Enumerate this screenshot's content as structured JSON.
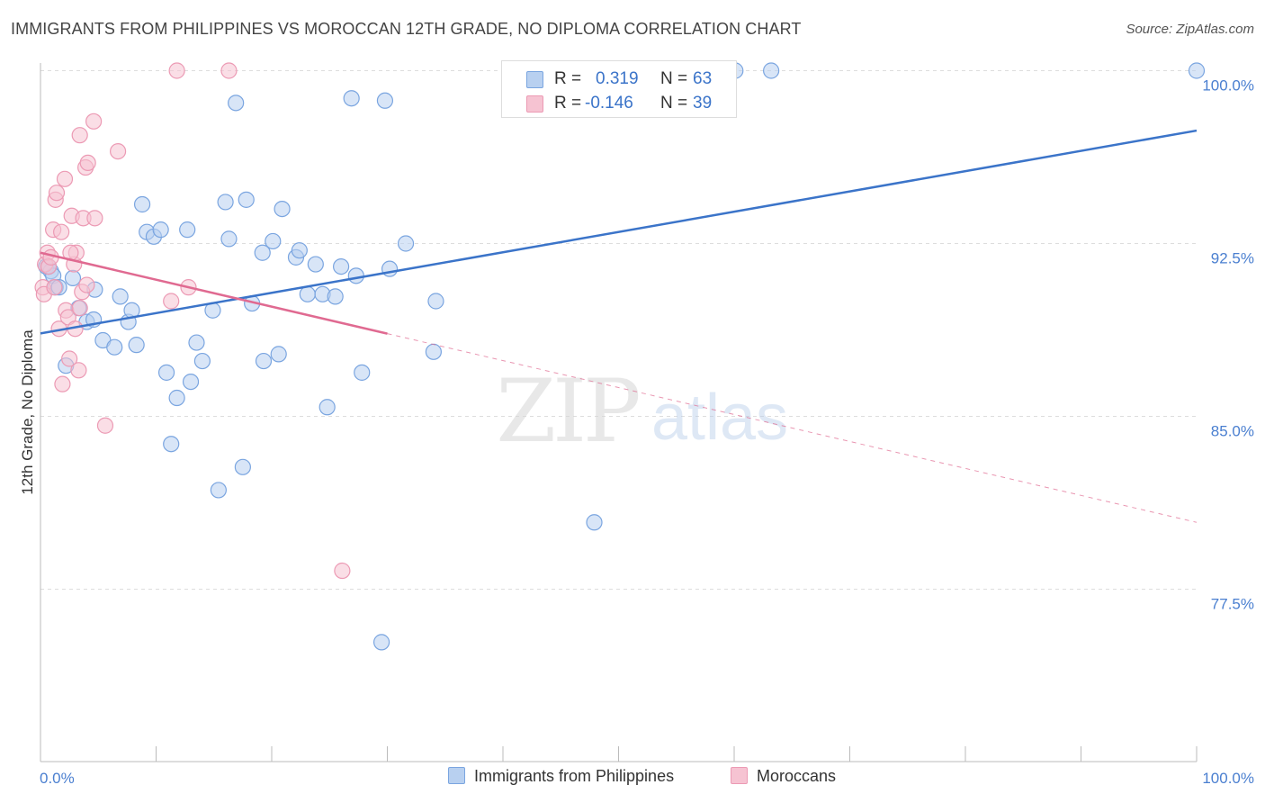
{
  "title": "IMMIGRANTS FROM PHILIPPINES VS MOROCCAN 12TH GRADE, NO DIPLOMA CORRELATION CHART",
  "source": "Source: ZipAtlas.com",
  "watermark": {
    "zip": "ZIP",
    "atlas": "atlas"
  },
  "colors": {
    "blue": "#3b74c9",
    "blue_fill": "#b8d0f0",
    "pink": "#e06a91",
    "pink_fill": "#f6c3d2",
    "grid": "#dddddd",
    "tick_text": "#4a7fd0"
  },
  "legend": {
    "rows": [
      {
        "r_label": "R =",
        "r_value": "0.319",
        "n_label": "N =",
        "n_value": "63"
      },
      {
        "r_label": "R =",
        "r_value": "-0.146",
        "n_label": "N =",
        "n_value": "39"
      }
    ]
  },
  "chart_data": {
    "type": "scatter",
    "title": "IMMIGRANTS FROM PHILIPPINES VS MOROCCAN 12TH GRADE, NO DIPLOMA CORRELATION CHART",
    "xlabel": "",
    "ylabel": "12th Grade, No Diploma",
    "xlim": [
      0,
      100
    ],
    "ylim": [
      70.0,
      100.5
    ],
    "x_tick_labels": [
      "0.0%",
      "100.0%"
    ],
    "y_ticks": [
      77.5,
      85.0,
      92.5,
      100.0
    ],
    "y_tick_labels": [
      "77.5%",
      "85.0%",
      "92.5%",
      "100.0%"
    ],
    "grid": true,
    "legend_position": "bottom",
    "series": [
      {
        "name": "Immigrants from Philippines",
        "r": 0.319,
        "n": 63,
        "trend": {
          "x": [
            0,
            100
          ],
          "y": [
            88.6,
            97.4
          ],
          "dashed_from": null
        },
        "points": [
          [
            0.5,
            91.5
          ],
          [
            0.9,
            91.3
          ],
          [
            1.1,
            91.1
          ],
          [
            1.3,
            90.6
          ],
          [
            1.6,
            90.6
          ],
          [
            2.2,
            87.2
          ],
          [
            2.8,
            91.0
          ],
          [
            3.3,
            89.7
          ],
          [
            4.0,
            89.1
          ],
          [
            4.6,
            89.2
          ],
          [
            4.7,
            90.5
          ],
          [
            5.4,
            88.3
          ],
          [
            6.4,
            88.0
          ],
          [
            6.9,
            90.2
          ],
          [
            7.6,
            89.1
          ],
          [
            7.9,
            89.6
          ],
          [
            8.3,
            88.1
          ],
          [
            8.8,
            94.2
          ],
          [
            9.2,
            93.0
          ],
          [
            9.8,
            92.8
          ],
          [
            10.4,
            93.1
          ],
          [
            10.9,
            86.9
          ],
          [
            11.3,
            83.8
          ],
          [
            11.8,
            85.8
          ],
          [
            12.7,
            93.1
          ],
          [
            13.0,
            86.5
          ],
          [
            13.5,
            88.2
          ],
          [
            14.0,
            87.4
          ],
          [
            14.9,
            89.6
          ],
          [
            15.4,
            81.8
          ],
          [
            16.0,
            94.3
          ],
          [
            16.3,
            92.7
          ],
          [
            16.9,
            98.6
          ],
          [
            17.5,
            82.8
          ],
          [
            17.8,
            94.4
          ],
          [
            18.3,
            89.9
          ],
          [
            19.2,
            92.1
          ],
          [
            19.3,
            87.4
          ],
          [
            20.1,
            92.6
          ],
          [
            20.6,
            87.7
          ],
          [
            20.9,
            94.0
          ],
          [
            22.1,
            91.9
          ],
          [
            22.4,
            92.2
          ],
          [
            23.1,
            90.3
          ],
          [
            23.8,
            91.6
          ],
          [
            24.4,
            90.3
          ],
          [
            24.8,
            85.4
          ],
          [
            25.5,
            90.2
          ],
          [
            26.0,
            91.5
          ],
          [
            26.9,
            98.8
          ],
          [
            27.3,
            91.1
          ],
          [
            27.8,
            86.9
          ],
          [
            29.5,
            75.2
          ],
          [
            29.8,
            98.7
          ],
          [
            30.2,
            91.4
          ],
          [
            31.6,
            92.5
          ],
          [
            34.0,
            87.8
          ],
          [
            34.2,
            90.0
          ],
          [
            47.9,
            80.4
          ],
          [
            60.1,
            100.0
          ],
          [
            63.2,
            100.0
          ],
          [
            100.0,
            100.0
          ],
          [
            0.7,
            91.5
          ]
        ]
      },
      {
        "name": "Moroccans",
        "r": -0.146,
        "n": 39,
        "trend": {
          "x": [
            0,
            100
          ],
          "y": [
            92.1,
            80.4
          ],
          "dashed_from": 30
        },
        "points": [
          [
            0.2,
            90.6
          ],
          [
            0.3,
            90.3
          ],
          [
            0.4,
            91.6
          ],
          [
            0.6,
            92.1
          ],
          [
            0.7,
            91.5
          ],
          [
            0.9,
            91.9
          ],
          [
            1.1,
            93.1
          ],
          [
            1.3,
            94.4
          ],
          [
            1.4,
            94.7
          ],
          [
            1.6,
            88.8
          ],
          [
            1.8,
            93.0
          ],
          [
            1.9,
            86.4
          ],
          [
            2.1,
            95.3
          ],
          [
            2.2,
            89.6
          ],
          [
            2.4,
            89.3
          ],
          [
            2.5,
            87.5
          ],
          [
            2.7,
            93.7
          ],
          [
            2.9,
            91.6
          ],
          [
            3.1,
            92.1
          ],
          [
            3.3,
            87.0
          ],
          [
            3.4,
            89.7
          ],
          [
            3.4,
            97.2
          ],
          [
            3.6,
            90.4
          ],
          [
            3.7,
            93.6
          ],
          [
            3.9,
            95.8
          ],
          [
            4.0,
            90.7
          ],
          [
            4.1,
            96.0
          ],
          [
            4.6,
            97.8
          ],
          [
            4.7,
            93.6
          ],
          [
            5.6,
            84.6
          ],
          [
            6.7,
            96.5
          ],
          [
            11.3,
            90.0
          ],
          [
            11.8,
            100.0
          ],
          [
            12.8,
            90.6
          ],
          [
            16.3,
            100.0
          ],
          [
            26.1,
            78.3
          ],
          [
            1.2,
            90.6
          ],
          [
            2.6,
            92.1
          ],
          [
            3.0,
            88.8
          ]
        ]
      }
    ]
  }
}
